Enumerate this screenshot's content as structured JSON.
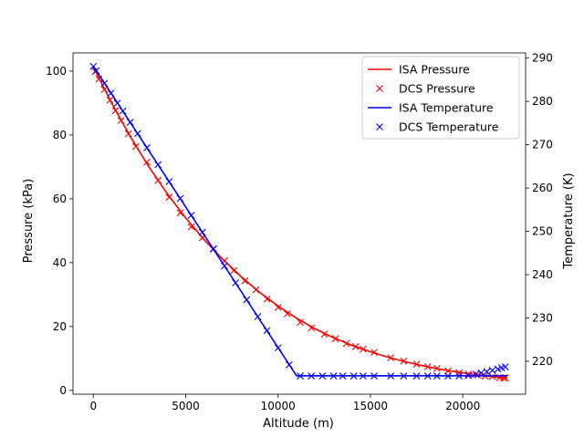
{
  "chart_data": {
    "type": "line",
    "xlabel": "Altitude (m)",
    "ylabel_left": "Pressure (kPa)",
    "ylabel_right": "Temperature (K)",
    "xlim": [
      -1100,
      23400
    ],
    "ylim_left": [
      -1.2,
      105.7
    ],
    "ylim_right": [
      212.4,
      291.2
    ],
    "x_ticks": [
      0,
      5000,
      10000,
      15000,
      20000
    ],
    "x_tick_labels": [
      "0",
      "5000",
      "10000",
      "15000",
      "20000"
    ],
    "y_left_ticks": [
      0,
      20,
      40,
      60,
      80,
      100
    ],
    "y_left_tick_labels": [
      "0",
      "20",
      "40",
      "60",
      "80",
      "100"
    ],
    "y_right_ticks": [
      220,
      230,
      240,
      250,
      260,
      270,
      280,
      290
    ],
    "y_right_tick_labels": [
      "220",
      "230",
      "240",
      "250",
      "260",
      "270",
      "280",
      "290"
    ],
    "grid": false,
    "legend_position": "top-right",
    "legend": [
      {
        "label": "ISA Pressure",
        "style": "line",
        "color": "#ff0000"
      },
      {
        "label": "DCS Pressure",
        "style": "x",
        "color": "#ff0000"
      },
      {
        "label": "ISA Temperature",
        "style": "line",
        "color": "#0000ff"
      },
      {
        "label": "DCS Temperature",
        "style": "x",
        "color": "#0000ff"
      }
    ],
    "series": [
      {
        "name": "ISA Pressure",
        "axis": "left",
        "style": "line",
        "color": "#ff0000",
        "x": [
          0,
          1000,
          2000,
          3000,
          4000,
          5000,
          6000,
          7000,
          8000,
          9000,
          10000,
          11000,
          12000,
          13000,
          14000,
          15000,
          16000,
          17000,
          18000,
          19000,
          20000,
          21000,
          22000,
          22400
        ],
        "y": [
          101.3,
          89.9,
          79.5,
          70.1,
          61.6,
          54.0,
          47.2,
          41.1,
          35.6,
          30.7,
          26.4,
          22.6,
          19.3,
          16.5,
          14.1,
          12.1,
          10.3,
          8.8,
          7.5,
          6.4,
          5.5,
          4.7,
          4.0,
          3.8
        ]
      },
      {
        "name": "DCS Pressure",
        "axis": "left",
        "style": "x",
        "color": "#ff0000",
        "x": [
          100,
          300,
          600,
          900,
          1200,
          1500,
          1900,
          2300,
          2900,
          3500,
          4100,
          4700,
          5300,
          5900,
          6500,
          7100,
          7600,
          8200,
          8800,
          9400,
          10000,
          10500,
          11200,
          11800,
          12500,
          13100,
          13700,
          14200,
          14600,
          15200,
          16100,
          16800,
          17500,
          18100,
          18600,
          19200,
          19800,
          20300,
          20800,
          21200,
          21600,
          22000,
          22200,
          22300
        ],
        "y": [
          99.8,
          97.5,
          94.2,
          90.9,
          87.6,
          84.5,
          80.4,
          76.4,
          71.5,
          65.8,
          60.5,
          55.6,
          51.2,
          47.8,
          44.2,
          40.6,
          37.5,
          34.3,
          31.5,
          28.6,
          26.0,
          24.0,
          21.3,
          19.6,
          17.6,
          16.2,
          14.7,
          13.7,
          12.9,
          11.9,
          10.2,
          9.2,
          8.2,
          7.4,
          6.9,
          6.1,
          5.5,
          5.1,
          4.8,
          4.5,
          4.3,
          4.0,
          3.9,
          3.9
        ]
      },
      {
        "name": "ISA Temperature",
        "axis": "right",
        "style": "line",
        "color": "#0000ff",
        "x": [
          0,
          11000,
          22400
        ],
        "y": [
          288.15,
          216.65,
          216.65
        ]
      },
      {
        "name": "DCS Temperature",
        "axis": "right",
        "style": "x",
        "color": "#0000ff",
        "x": [
          0,
          150,
          600,
          950,
          1300,
          1600,
          2000,
          2400,
          2900,
          3500,
          4100,
          4700,
          5300,
          5900,
          6500,
          7100,
          7700,
          8300,
          8900,
          9400,
          10000,
          10600,
          11200,
          11800,
          12400,
          13000,
          13500,
          14100,
          14600,
          15200,
          16100,
          16800,
          17500,
          18100,
          18600,
          19200,
          19800,
          20300,
          20700,
          21000,
          21300,
          21600,
          21900,
          22100,
          22300
        ],
        "y": [
          288.1,
          287.1,
          284.2,
          281.9,
          279.6,
          277.8,
          275.2,
          272.6,
          269.3,
          265.4,
          261.5,
          257.6,
          253.7,
          249.8,
          246.0,
          242.0,
          238.1,
          234.2,
          230.3,
          227.1,
          223.1,
          219.2,
          216.6,
          216.6,
          216.6,
          216.6,
          216.6,
          216.6,
          216.6,
          216.6,
          216.6,
          216.6,
          216.6,
          216.6,
          216.6,
          216.6,
          216.6,
          216.7,
          217.0,
          217.3,
          217.6,
          217.9,
          218.2,
          218.5,
          218.7
        ]
      }
    ]
  }
}
